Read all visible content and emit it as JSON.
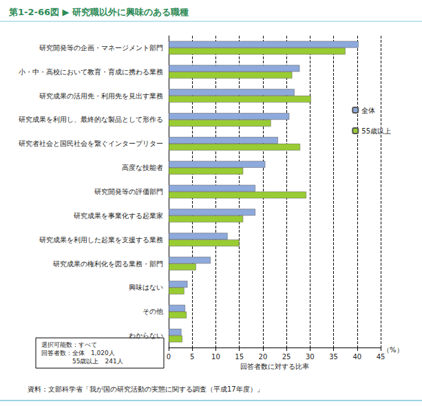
{
  "chart_data": {
    "type": "bar",
    "orientation": "horizontal",
    "title": "第1-2-66図 ▶ 研究職以外に興味のある職種",
    "categories": [
      "研究開発等の企画・マネージメント部門",
      "小・中・高校において教育・育成に携わる業務",
      "研究成果の活用先・利用先を見出す業務",
      "研究成果を利用し、最終的な製品として形作る",
      "研究者社会と国民社会を繋ぐインタープリター",
      "高度な技能者",
      "研究開発等の評価部門",
      "研究成果を事業化する起業家",
      "研究成果を利用した起業を支援する業務",
      "研究成果の権利化を図る業務・部門",
      "興味はない",
      "その他",
      "わからない"
    ],
    "series": [
      {
        "name": "全体",
        "color": "#8ea9db",
        "values": [
          40.3,
          27.8,
          26.7,
          25.6,
          23.2,
          20.5,
          18.4,
          18.4,
          12.5,
          8.9,
          4.0,
          3.5,
          2.7
        ]
      },
      {
        "name": "55歳以上",
        "color": "#99cc33",
        "values": [
          37.5,
          26.2,
          30.2,
          21.7,
          27.9,
          15.8,
          29.2,
          15.8,
          15.0,
          5.8,
          3.3,
          3.8,
          2.9
        ]
      }
    ],
    "xlabel": "回答者数に対する比率",
    "x_unit": "（%）",
    "xlim": [
      0,
      45
    ],
    "xticks": [
      0,
      5,
      10,
      15,
      20,
      25,
      30,
      35,
      40,
      45
    ],
    "grid": true,
    "legend": "right",
    "note": [
      "選択可能数：すべて",
      "回答者数：全体　1,020人",
      "　　　　　55歳以上　241人"
    ],
    "source": "資料：文部科学省「我が国の研究活動の実態に関する調査（平成17年度）」"
  }
}
